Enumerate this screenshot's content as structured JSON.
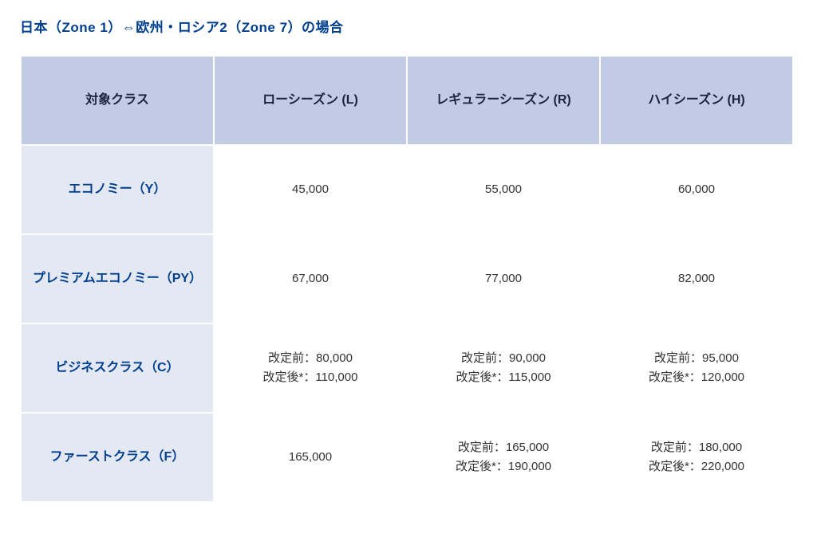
{
  "title": "日本（Zone 1）⇔欧州・ロシア2（Zone 7）の場合",
  "labels": {
    "before": "改定前：",
    "after": "改定後*："
  },
  "columns": [
    "対象クラス",
    "ローシーズン (L)",
    "レギュラーシーズン (R)",
    "ハイシーズン (H)"
  ],
  "rows": [
    {
      "class": "エコノミー（Y）",
      "low": {
        "type": "single",
        "value": "45,000"
      },
      "regular": {
        "type": "single",
        "value": "55,000"
      },
      "high": {
        "type": "single",
        "value": "60,000"
      }
    },
    {
      "class": "プレミアムエコノミー（PY）",
      "low": {
        "type": "single",
        "value": "67,000"
      },
      "regular": {
        "type": "single",
        "value": "77,000"
      },
      "high": {
        "type": "single",
        "value": "82,000"
      }
    },
    {
      "class": "ビジネスクラス（C）",
      "low": {
        "type": "dual",
        "before": "80,000",
        "after": "110,000"
      },
      "regular": {
        "type": "dual",
        "before": "90,000",
        "after": "115,000"
      },
      "high": {
        "type": "dual",
        "before": "95,000",
        "after": "120,000"
      }
    },
    {
      "class": "ファーストクラス（F）",
      "low": {
        "type": "single",
        "value": "165,000"
      },
      "regular": {
        "type": "dual",
        "before": "165,000",
        "after": "190,000"
      },
      "high": {
        "type": "dual",
        "before": "180,000",
        "after": "220,000"
      }
    }
  ],
  "style": {
    "title_color": "#003f8e",
    "header_bg": "#c1cce4",
    "rowhead_bg": "#e3e8f3",
    "rowhead_fg": "#003f8e",
    "cell_fg": "#333333",
    "border_color": "#ffffff"
  }
}
